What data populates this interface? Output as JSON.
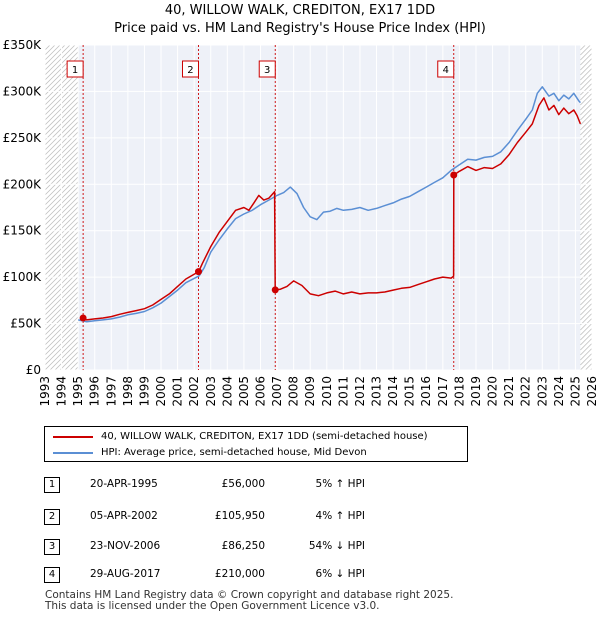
{
  "chart_data": {
    "type": "line",
    "title": "40, WILLOW WALK, CREDITON, EX17 1DD",
    "subtitle": "Price paid vs. HM Land Registry's House Price Index (HPI)",
    "xlabel": "",
    "ylabel": "",
    "xlim": [
      1993,
      2026
    ],
    "ylim": [
      0,
      350000
    ],
    "x_ticks": [
      "1993",
      "1994",
      "1995",
      "1996",
      "1997",
      "1998",
      "1999",
      "2000",
      "2001",
      "2002",
      "2003",
      "2004",
      "2005",
      "2006",
      "2007",
      "2008",
      "2009",
      "2010",
      "2011",
      "2012",
      "2013",
      "2014",
      "2015",
      "2016",
      "2017",
      "2018",
      "2019",
      "2020",
      "2021",
      "2022",
      "2023",
      "2024",
      "2025",
      "2026"
    ],
    "y_ticks": [
      {
        "value": 0,
        "label": "£0"
      },
      {
        "value": 50000,
        "label": "£50K"
      },
      {
        "value": 100000,
        "label": "£100K"
      },
      {
        "value": 150000,
        "label": "£150K"
      },
      {
        "value": 200000,
        "label": "£200K"
      },
      {
        "value": 250000,
        "label": "£250K"
      },
      {
        "value": 300000,
        "label": "£300K"
      },
      {
        "value": 350000,
        "label": "£350K"
      }
    ],
    "grid": true,
    "legend_position": "below",
    "series": [
      {
        "name": "40, WILLOW WALK, CREDITON, EX17 1DD (semi-detached house)",
        "color": "#cc0000",
        "points": [
          [
            1995.3,
            56000
          ],
          [
            1995.5,
            54000
          ],
          [
            1996,
            55000
          ],
          [
            1996.5,
            56000
          ],
          [
            1997,
            57500
          ],
          [
            1997.5,
            60000
          ],
          [
            1998,
            62000
          ],
          [
            1998.5,
            64000
          ],
          [
            1999,
            66000
          ],
          [
            1999.5,
            70000
          ],
          [
            2000,
            76000
          ],
          [
            2000.5,
            82000
          ],
          [
            2001,
            90000
          ],
          [
            2001.5,
            98000
          ],
          [
            2002.27,
            105950
          ],
          [
            2002.5,
            115000
          ],
          [
            2003,
            133000
          ],
          [
            2003.5,
            148000
          ],
          [
            2004,
            160000
          ],
          [
            2004.5,
            172000
          ],
          [
            2005,
            175000
          ],
          [
            2005.3,
            172000
          ],
          [
            2005.6,
            180000
          ],
          [
            2005.9,
            188000
          ],
          [
            2006.2,
            183000
          ],
          [
            2006.5,
            185000
          ],
          [
            2006.85,
            192000
          ],
          [
            2006.89,
            86250
          ],
          [
            2007.2,
            87000
          ],
          [
            2007.6,
            90000
          ],
          [
            2008,
            96000
          ],
          [
            2008.5,
            91000
          ],
          [
            2009,
            82000
          ],
          [
            2009.5,
            80000
          ],
          [
            2010,
            83000
          ],
          [
            2010.5,
            85000
          ],
          [
            2011,
            82000
          ],
          [
            2011.5,
            84000
          ],
          [
            2012,
            82000
          ],
          [
            2012.5,
            83000
          ],
          [
            2013,
            83000
          ],
          [
            2013.5,
            84000
          ],
          [
            2014,
            86000
          ],
          [
            2014.5,
            88000
          ],
          [
            2015,
            89000
          ],
          [
            2015.5,
            92000
          ],
          [
            2016,
            95000
          ],
          [
            2016.5,
            98000
          ],
          [
            2017.0,
            100000
          ],
          [
            2017.5,
            99000
          ],
          [
            2017.65,
            101000
          ],
          [
            2017.66,
            210000
          ],
          [
            2018,
            214000
          ],
          [
            2018.5,
            219000
          ],
          [
            2019,
            215000
          ],
          [
            2019.5,
            218000
          ],
          [
            2020,
            217000
          ],
          [
            2020.5,
            222000
          ],
          [
            2021,
            232000
          ],
          [
            2021.5,
            245000
          ],
          [
            2022,
            256000
          ],
          [
            2022.4,
            265000
          ],
          [
            2022.8,
            285000
          ],
          [
            2023.1,
            293000
          ],
          [
            2023.4,
            280000
          ],
          [
            2023.7,
            285000
          ],
          [
            2024,
            275000
          ],
          [
            2024.3,
            282000
          ],
          [
            2024.6,
            276000
          ],
          [
            2024.9,
            280000
          ],
          [
            2025.1,
            274000
          ],
          [
            2025.3,
            265000
          ]
        ]
      },
      {
        "name": "HPI: Average price, semi-detached house, Mid Devon",
        "color": "#5b8fd4",
        "points": [
          [
            1995.0,
            54000
          ],
          [
            1995.5,
            52000
          ],
          [
            1996,
            53000
          ],
          [
            1996.5,
            54000
          ],
          [
            1997,
            55000
          ],
          [
            1997.5,
            57000
          ],
          [
            1998,
            59500
          ],
          [
            1998.5,
            61000
          ],
          [
            1999,
            63000
          ],
          [
            1999.5,
            67000
          ],
          [
            2000,
            72000
          ],
          [
            2000.5,
            79000
          ],
          [
            2001,
            86000
          ],
          [
            2001.5,
            94000
          ],
          [
            2002.3,
            101500
          ],
          [
            2002.6,
            110000
          ],
          [
            2003,
            127000
          ],
          [
            2003.5,
            140000
          ],
          [
            2004,
            152000
          ],
          [
            2004.5,
            163000
          ],
          [
            2005,
            168000
          ],
          [
            2005.5,
            172000
          ],
          [
            2006,
            178000
          ],
          [
            2006.5,
            183000
          ],
          [
            2007,
            188000
          ],
          [
            2007.4,
            191000
          ],
          [
            2007.8,
            197000
          ],
          [
            2008.2,
            190000
          ],
          [
            2008.6,
            175000
          ],
          [
            2009,
            165000
          ],
          [
            2009.4,
            162000
          ],
          [
            2009.8,
            170000
          ],
          [
            2010.2,
            171000
          ],
          [
            2010.6,
            174000
          ],
          [
            2011,
            172000
          ],
          [
            2011.5,
            173000
          ],
          [
            2012,
            175000
          ],
          [
            2012.5,
            172000
          ],
          [
            2013,
            174000
          ],
          [
            2013.5,
            177000
          ],
          [
            2014,
            180000
          ],
          [
            2014.5,
            184000
          ],
          [
            2015,
            187000
          ],
          [
            2015.5,
            192000
          ],
          [
            2016,
            197000
          ],
          [
            2016.5,
            202000
          ],
          [
            2017,
            207000
          ],
          [
            2017.5,
            215000
          ],
          [
            2018,
            221000
          ],
          [
            2018.5,
            227000
          ],
          [
            2019,
            226000
          ],
          [
            2019.5,
            229000
          ],
          [
            2020,
            230000
          ],
          [
            2020.5,
            235000
          ],
          [
            2021,
            245000
          ],
          [
            2021.5,
            258000
          ],
          [
            2022,
            270000
          ],
          [
            2022.4,
            280000
          ],
          [
            2022.7,
            298000
          ],
          [
            2023.0,
            305000
          ],
          [
            2023.4,
            295000
          ],
          [
            2023.7,
            298000
          ],
          [
            2024,
            290000
          ],
          [
            2024.3,
            296000
          ],
          [
            2024.6,
            292000
          ],
          [
            2024.9,
            298000
          ],
          [
            2025.2,
            290000
          ],
          [
            2025.3,
            288000
          ]
        ]
      }
    ],
    "annotations": [
      {
        "label": "1",
        "x": 1995.3,
        "y": 56000
      },
      {
        "label": "2",
        "x": 2002.26,
        "y": 105950
      },
      {
        "label": "3",
        "x": 2006.89,
        "y": 86250
      },
      {
        "label": "4",
        "x": 2017.66,
        "y": 210000
      }
    ]
  },
  "legend": {
    "property_label": "40, WILLOW WALK, CREDITON, EX17 1DD (semi-detached house)",
    "hpi_label": "HPI: Average price, semi-detached house, Mid Devon"
  },
  "transactions": [
    {
      "num": "1",
      "date": "20-APR-1995",
      "price": "£56,000",
      "hpi": "5% ↑ HPI"
    },
    {
      "num": "2",
      "date": "05-APR-2002",
      "price": "£105,950",
      "hpi": "4% ↑ HPI"
    },
    {
      "num": "3",
      "date": "23-NOV-2006",
      "price": "£86,250",
      "hpi": "54% ↓ HPI"
    },
    {
      "num": "4",
      "date": "29-AUG-2017",
      "price": "£210,000",
      "hpi": "6% ↓ HPI"
    }
  ],
  "footer": {
    "line1": "Contains HM Land Registry data © Crown copyright and database right 2025.",
    "line2": "This data is licensed under the Open Government Licence v3.0."
  }
}
